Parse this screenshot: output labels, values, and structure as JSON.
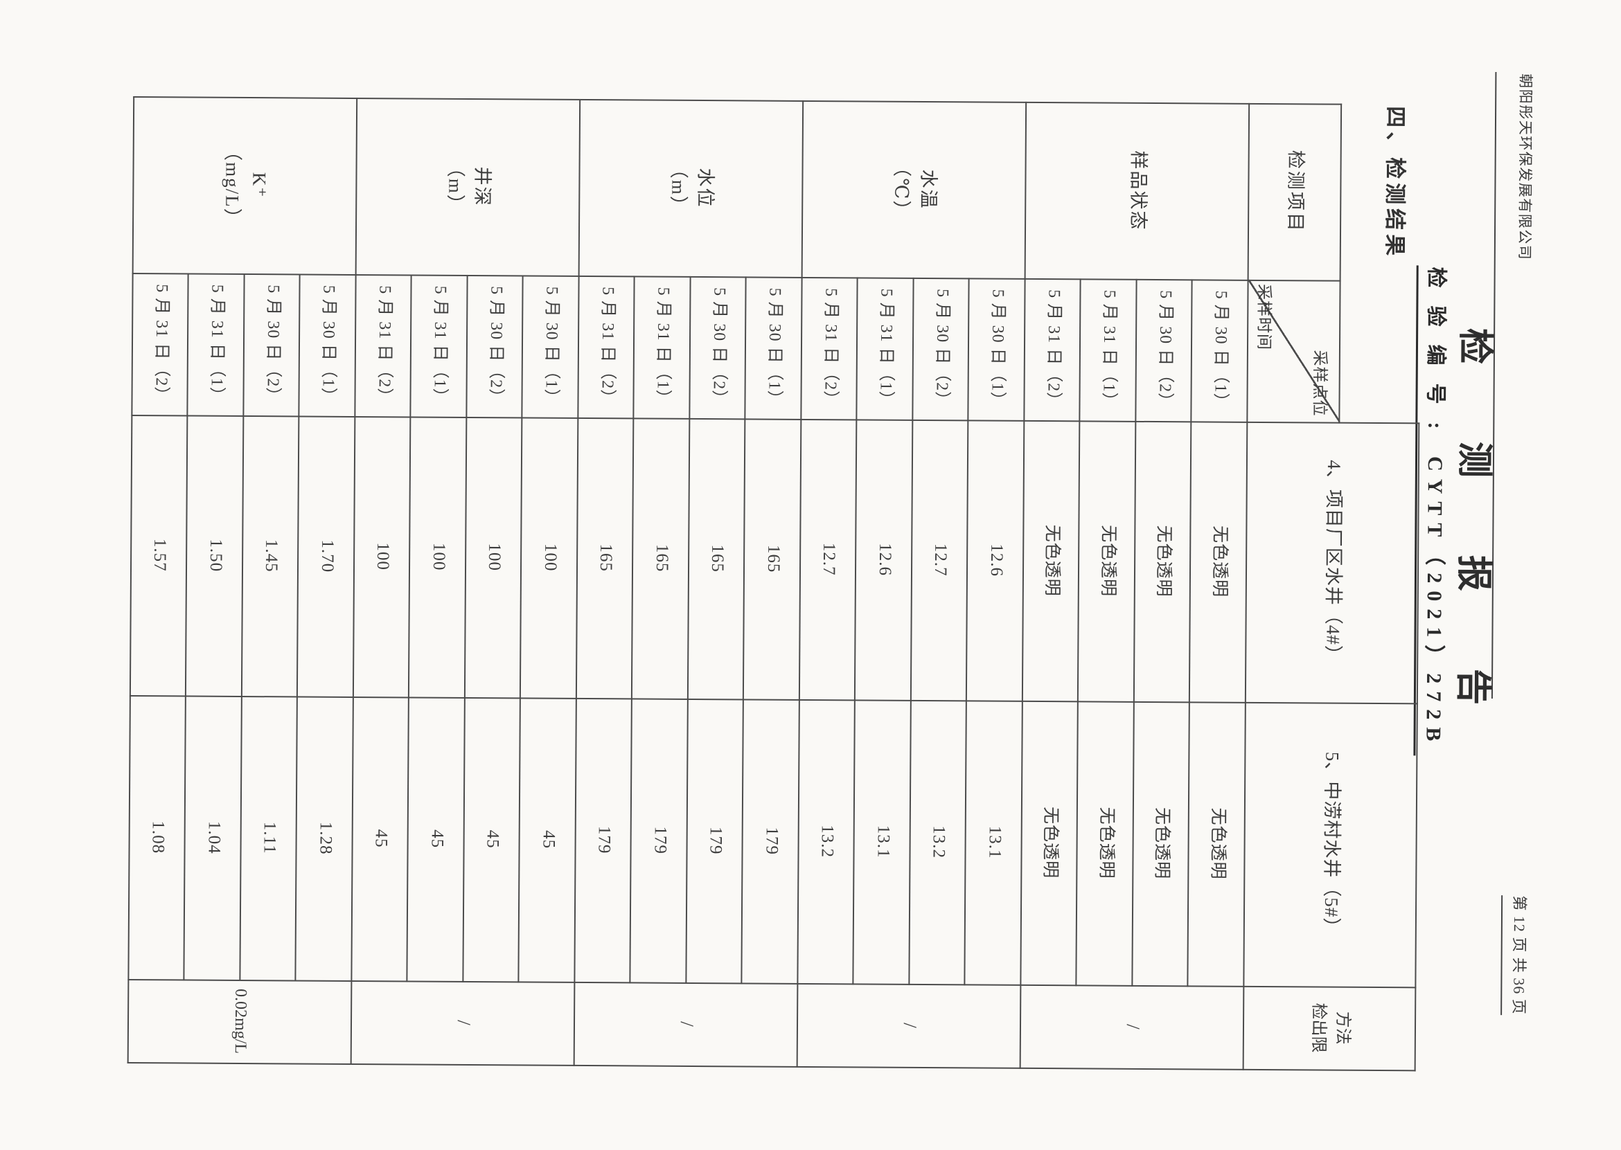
{
  "page": {
    "company": "朝阳彤天环保发展有限公司",
    "page_info": "第 12 页  共 36 页",
    "title": "检测报告",
    "report_no_label": "检验编号:",
    "report_no": "CYTT（2021）272B",
    "section_heading": "四、检测结果"
  },
  "table": {
    "header": {
      "item_label": "检测项目",
      "diagonal_top_right": "采样点位",
      "diagonal_bottom_left": "采样时间",
      "well4_label": "4、项目厂区水井（4#）",
      "well5_label": "5、中涝村水井（5#）",
      "limit_label_lines": [
        "方法",
        "检出限"
      ]
    },
    "sampling_times": [
      "5 月 30 日（1）",
      "5 月 30 日（2）",
      "5 月 31 日（1）",
      "5 月 31 日（2）"
    ],
    "groups": [
      {
        "item_lines": [
          "样品状态"
        ],
        "well4": [
          "无色透明",
          "无色透明",
          "无色透明",
          "无色透明"
        ],
        "well5": [
          "无色透明",
          "无色透明",
          "无色透明",
          "无色透明"
        ],
        "limit": "/"
      },
      {
        "item_lines": [
          "水温",
          "（℃）"
        ],
        "well4": [
          "12.6",
          "12.7",
          "12.6",
          "12.7"
        ],
        "well5": [
          "13.1",
          "13.2",
          "13.1",
          "13.2"
        ],
        "limit": "/"
      },
      {
        "item_lines": [
          "水位",
          "（m）"
        ],
        "well4": [
          "165",
          "165",
          "165",
          "165"
        ],
        "well5": [
          "179",
          "179",
          "179",
          "179"
        ],
        "limit": "/"
      },
      {
        "item_lines": [
          "井深",
          "（m）"
        ],
        "well4": [
          "100",
          "100",
          "100",
          "100"
        ],
        "well5": [
          "45",
          "45",
          "45",
          "45"
        ],
        "limit": "/"
      },
      {
        "item_lines": [
          "K⁺",
          "（mg/L）"
        ],
        "well4": [
          "1.70",
          "1.45",
          "1.50",
          "1.57"
        ],
        "well5": [
          "1.28",
          "1.11",
          "1.04",
          "1.08"
        ],
        "limit": "0.02mg/L"
      }
    ]
  }
}
